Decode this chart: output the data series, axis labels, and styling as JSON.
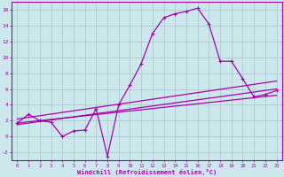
{
  "xlabel": "Windchill (Refroidissement éolien,°C)",
  "bg_color": "#cce8ec",
  "grid_color": "#aacccc",
  "line_color": "#aa00aa",
  "x_min": -0.5,
  "x_max": 23.5,
  "y_min": -3,
  "y_max": 17,
  "yticks": [
    -2,
    0,
    2,
    4,
    6,
    8,
    10,
    12,
    14,
    16
  ],
  "xticks": [
    0,
    1,
    2,
    3,
    4,
    5,
    6,
    7,
    8,
    9,
    10,
    11,
    12,
    13,
    14,
    15,
    16,
    17,
    18,
    19,
    20,
    21,
    22,
    23
  ],
  "curve1_x": [
    0,
    1,
    2,
    3,
    4,
    5,
    6,
    7,
    8,
    9,
    10,
    11,
    12,
    13,
    14,
    15,
    16,
    17,
    18,
    19,
    20,
    21,
    22,
    23
  ],
  "curve1_y": [
    1.7,
    2.8,
    2.0,
    1.8,
    0.0,
    0.7,
    0.8,
    3.5,
    -2.5,
    4.0,
    6.5,
    9.2,
    13.0,
    15.0,
    15.5,
    15.8,
    16.2,
    14.2,
    9.5,
    9.5,
    7.3,
    5.0,
    5.3,
    5.8
  ],
  "line2_x": [
    0,
    23
  ],
  "line2_y": [
    1.7,
    5.2
  ],
  "line3_x": [
    0,
    23
  ],
  "line3_y": [
    2.2,
    7.0
  ],
  "line4_x": [
    0,
    23
  ],
  "line4_y": [
    1.5,
    6.0
  ]
}
